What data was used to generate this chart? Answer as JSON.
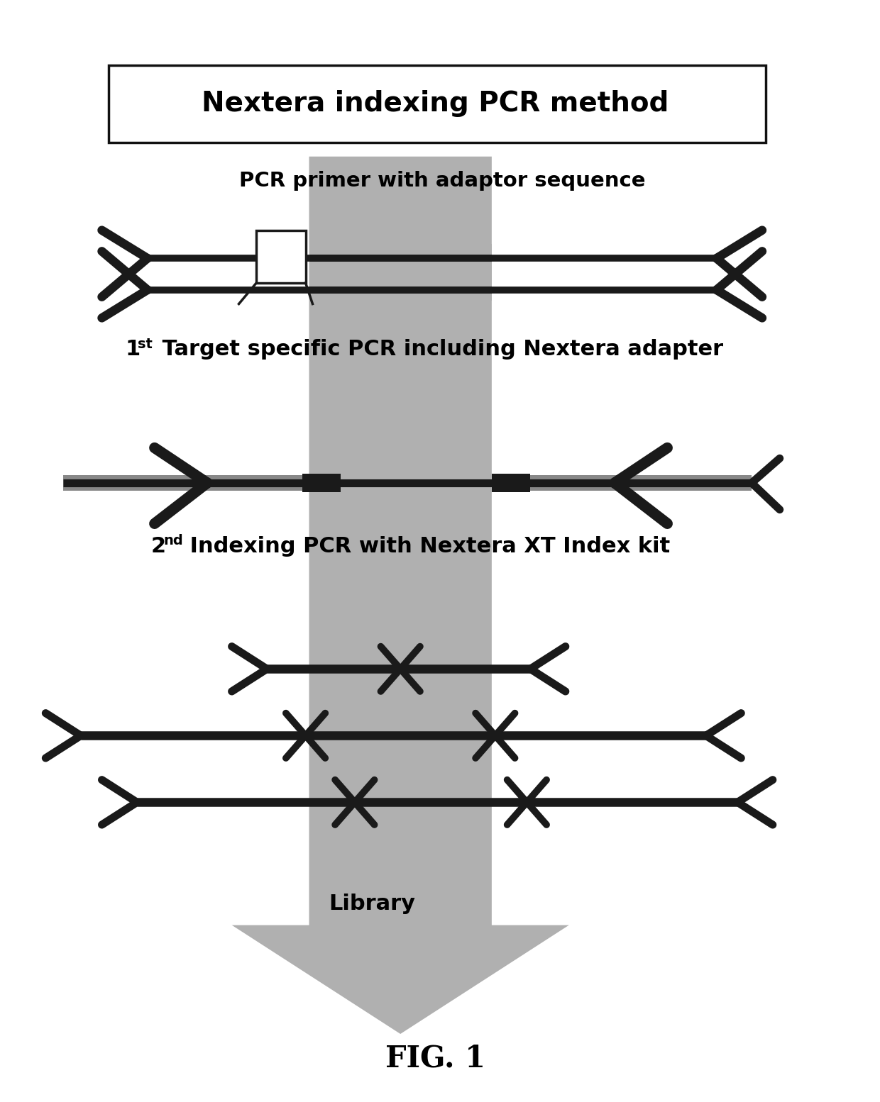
{
  "title": "Nextera indexing PCR method",
  "label1": "PCR primer with adaptor sequence",
  "label2_1": "1",
  "label2_sup": "st",
  "label2_2": " Target specific PCR including Nextera adapter",
  "label3_1": "2",
  "label3_sup": "nd",
  "label3_2": " Indexing PCR with Nextera XT Index kit",
  "label4": "Library",
  "fig_label": "FIG. 1",
  "bg_color": "#ffffff",
  "gray_col": "#b0b0b0",
  "dark_col": "#1a1a1a",
  "strand_gray": "#888888"
}
